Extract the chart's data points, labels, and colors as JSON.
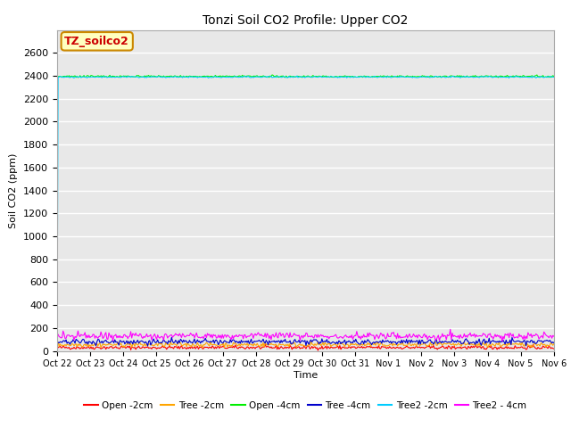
{
  "title": "Tonzi Soil CO2 Profile: Upper CO2",
  "ylabel": "Soil CO2 (ppm)",
  "xlabel": "Time",
  "annotation_text": "TZ_soilco2",
  "annotation_bg": "#FFFFC0",
  "annotation_border": "#CC8800",
  "annotation_text_color": "#CC0000",
  "ylim": [
    0,
    2800
  ],
  "yticks": [
    0,
    200,
    400,
    600,
    800,
    1000,
    1200,
    1400,
    1600,
    1800,
    2000,
    2200,
    2400,
    2600
  ],
  "bg_color": "#E8E8E8",
  "fig_bg_color": "#FFFFFF",
  "grid_color": "#FFFFFF",
  "series": {
    "Open_2cm": {
      "color": "#FF0000",
      "label": "Open -2cm",
      "mean": 30,
      "noise": 8
    },
    "Tree_2cm": {
      "color": "#FFA500",
      "label": "Tree -2cm",
      "mean": 55,
      "noise": 10
    },
    "Open_4cm": {
      "color": "#00EE00",
      "label": "Open -4cm",
      "mean": 2390,
      "noise": 3
    },
    "Tree_4cm": {
      "color": "#0000CC",
      "label": "Tree -4cm",
      "mean": 80,
      "noise": 12
    },
    "Tree2_2cm": {
      "color": "#00CCFF",
      "label": "Tree2 -2cm",
      "mean": 2390,
      "noise": 3
    },
    "Tree2_4cm": {
      "color": "#FF00FF",
      "label": "Tree2 - 4cm",
      "mean": 130,
      "noise": 15
    }
  },
  "n_points": 500,
  "x_start": 0,
  "x_end": 15,
  "xtick_positions": [
    0,
    1,
    2,
    3,
    4,
    5,
    6,
    7,
    8,
    9,
    10,
    11,
    12,
    13,
    14,
    15
  ],
  "xtick_labels": [
    "Oct 22",
    "Oct 23",
    "Oct 24",
    "Oct 25",
    "Oct 26",
    "Oct 27",
    "Oct 28",
    "Oct 29",
    "Oct 30",
    "Oct 31",
    "Nov 1",
    "Nov 2",
    "Nov 3",
    "Nov 4",
    "Nov 5",
    "Nov 6"
  ]
}
